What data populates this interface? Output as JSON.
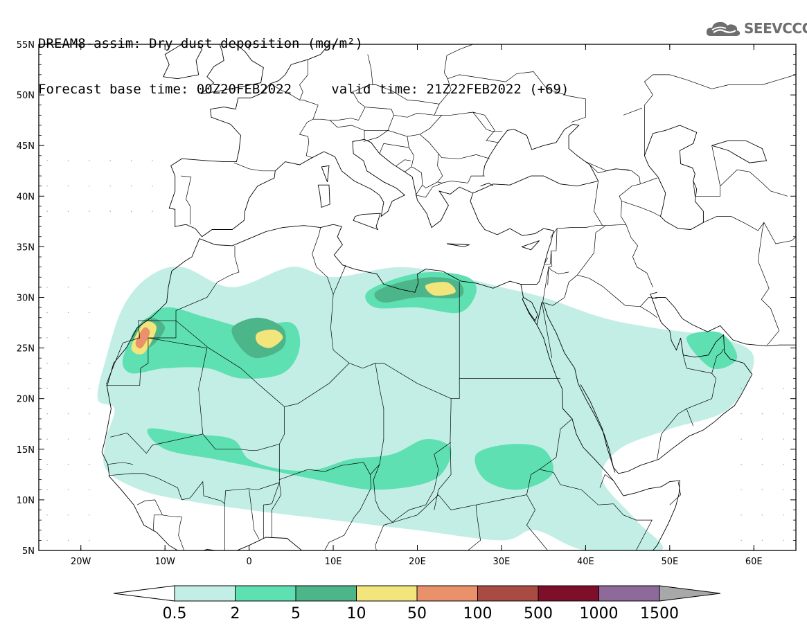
{
  "header": {
    "line1": "DREAM8-assim: Dry dust deposition (mg/m²)",
    "line2_left": "Forecast base time: 00Z20FEB2022",
    "line2_right": "valid time: 21Z22FEB2022 (+69)"
  },
  "logo": {
    "text": "SEEVCCC",
    "icon": "cloud-logo-icon"
  },
  "map": {
    "projection": "lat-lon",
    "lon_range": [
      -25,
      65
    ],
    "lat_range": [
      5,
      55
    ],
    "lon_ticks": [
      {
        "value": -20,
        "label": "20W"
      },
      {
        "value": -10,
        "label": "10W"
      },
      {
        "value": 0,
        "label": "0"
      },
      {
        "value": 10,
        "label": "10E"
      },
      {
        "value": 20,
        "label": "20E"
      },
      {
        "value": 30,
        "label": "30E"
      },
      {
        "value": 40,
        "label": "40E"
      },
      {
        "value": 50,
        "label": "50E"
      },
      {
        "value": 60,
        "label": "60E"
      }
    ],
    "lat_ticks": [
      {
        "value": 5,
        "label": "5N"
      },
      {
        "value": 10,
        "label": "10N"
      },
      {
        "value": 15,
        "label": "15N"
      },
      {
        "value": 20,
        "label": "20N"
      },
      {
        "value": 25,
        "label": "25N"
      },
      {
        "value": 30,
        "label": "30N"
      },
      {
        "value": 35,
        "label": "35N"
      },
      {
        "value": 40,
        "label": "40N"
      },
      {
        "value": 45,
        "label": "45N"
      },
      {
        "value": 50,
        "label": "50N"
      },
      {
        "value": 55,
        "label": "55N"
      }
    ],
    "deposition_fields": [
      {
        "level": 0,
        "points": [
          [
            -18,
            20
          ],
          [
            -17,
            24
          ],
          [
            -15,
            29
          ],
          [
            -12,
            32
          ],
          [
            -8,
            33
          ],
          [
            -2,
            31
          ],
          [
            5,
            33
          ],
          [
            10,
            32
          ],
          [
            18,
            33
          ],
          [
            25,
            32
          ],
          [
            30,
            31
          ],
          [
            35,
            30
          ],
          [
            42,
            28
          ],
          [
            48,
            27
          ],
          [
            56,
            26
          ],
          [
            60,
            24
          ],
          [
            57,
            19
          ],
          [
            50,
            17
          ],
          [
            44,
            15
          ],
          [
            42,
            12
          ],
          [
            46,
            8
          ],
          [
            49,
            5
          ],
          [
            40,
            5
          ],
          [
            34,
            7
          ],
          [
            30,
            6
          ],
          [
            20,
            7
          ],
          [
            10,
            8
          ],
          [
            0,
            9
          ],
          [
            -8,
            10
          ],
          [
            -13,
            11
          ],
          [
            -17,
            13
          ],
          [
            -17,
            16
          ],
          [
            -16,
            19
          ]
        ]
      },
      {
        "level": 1,
        "points": [
          [
            -15,
            24
          ],
          [
            -13,
            27
          ],
          [
            -10,
            29
          ],
          [
            -5,
            28
          ],
          [
            0,
            27
          ],
          [
            5,
            27.5
          ],
          [
            6,
            25
          ],
          [
            4,
            22.5
          ],
          [
            -1,
            22
          ],
          [
            -5,
            23
          ],
          [
            -10,
            23
          ],
          [
            -14,
            22.5
          ]
        ]
      },
      {
        "level": 1,
        "points": [
          [
            14,
            30.5
          ],
          [
            18,
            32
          ],
          [
            22,
            32.5
          ],
          [
            26,
            32
          ],
          [
            27,
            30.5
          ],
          [
            25,
            28.5
          ],
          [
            20,
            29
          ],
          [
            15,
            29
          ]
        ]
      },
      {
        "level": 1,
        "points": [
          [
            -12,
            17
          ],
          [
            -7,
            16.5
          ],
          [
            -2,
            16
          ],
          [
            0,
            14
          ],
          [
            4,
            13
          ],
          [
            8,
            13
          ],
          [
            12,
            14
          ],
          [
            17,
            14.5
          ],
          [
            21,
            16
          ],
          [
            24,
            15
          ],
          [
            22,
            12
          ],
          [
            15,
            11
          ],
          [
            8,
            12
          ],
          [
            2,
            13
          ],
          [
            -4,
            14
          ],
          [
            -10,
            15
          ]
        ]
      },
      {
        "level": 1,
        "points": [
          [
            27,
            14.5
          ],
          [
            31,
            15.5
          ],
          [
            35,
            15
          ],
          [
            36,
            12.5
          ],
          [
            32,
            11
          ],
          [
            28,
            12
          ]
        ]
      },
      {
        "level": 1,
        "points": [
          [
            52,
            26
          ],
          [
            56,
            26.5
          ],
          [
            58,
            24
          ],
          [
            55,
            23
          ]
        ]
      },
      {
        "level": 2,
        "points": [
          [
            -2,
            27
          ],
          [
            1,
            28
          ],
          [
            4,
            27
          ],
          [
            4,
            25
          ],
          [
            1,
            24
          ],
          [
            -1,
            25
          ]
        ]
      },
      {
        "level": 2,
        "points": [
          [
            15,
            30.5
          ],
          [
            18,
            31.5
          ],
          [
            22,
            32
          ],
          [
            25,
            31.5
          ],
          [
            25,
            30
          ],
          [
            20,
            30
          ],
          [
            16,
            29.5
          ]
        ]
      },
      {
        "level": 2,
        "points": [
          [
            -14,
            26
          ],
          [
            -12,
            28
          ],
          [
            -10,
            27
          ],
          [
            -12,
            25
          ]
        ]
      },
      {
        "level": 3,
        "points": [
          [
            1,
            26.5
          ],
          [
            3,
            26.8
          ],
          [
            4,
            26
          ],
          [
            2.5,
            25
          ],
          [
            1,
            25.5
          ]
        ]
      },
      {
        "level": 3,
        "points": [
          [
            21,
            31.2
          ],
          [
            23.5,
            31.5
          ],
          [
            24.5,
            30.5
          ],
          [
            22,
            30.2
          ]
        ]
      },
      {
        "level": 3,
        "points": [
          [
            -14,
            25
          ],
          [
            -12.5,
            27.5
          ],
          [
            -11,
            27
          ],
          [
            -12.5,
            24.5
          ]
        ]
      },
      {
        "level": 4,
        "points": [
          [
            -13.5,
            25.5
          ],
          [
            -12.5,
            27
          ],
          [
            -11.8,
            26.5
          ],
          [
            -12.8,
            25
          ]
        ]
      }
    ]
  },
  "colorbar": {
    "labels": [
      "0.5",
      "2",
      "5",
      "10",
      "50",
      "100",
      "500",
      "1000",
      "1500"
    ],
    "colors": [
      "#c2eee6",
      "#5fe0b2",
      "#4db58a",
      "#f2e57c",
      "#e8916a",
      "#a84c43",
      "#7d0f2a",
      "#8d6a9a",
      "#a8a8a8"
    ]
  }
}
